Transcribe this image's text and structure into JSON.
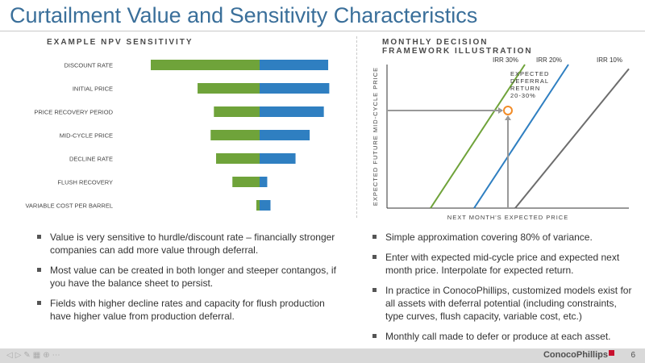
{
  "title": "Curtailment Value and Sensitivity Characteristics",
  "left": {
    "heading": "EXAMPLE NPV SENSITIVITY",
    "bullets": [
      "Value is very sensitive to hurdle/discount rate – financially stronger companies can add more value through deferral.",
      "Most value can be created in both longer and steeper contangos, if you have the balance sheet to persist.",
      "Fields with higher decline rates and capacity for flush production have higher value from production deferral."
    ]
  },
  "right": {
    "heading_line1": "MONTHLY DECISION",
    "heading_line2": "FRAMEWORK ILLUSTRATION",
    "bullets": [
      "Simple approximation covering 80% of variance.",
      "Enter with expected mid-cycle price and expected next month price.  Interpolate for expected return.",
      "In practice in ConocoPhillips, customized models exist for all assets with deferral potential (including constraints, type curves, flush capacity, variable cost, etc.)",
      "Monthly call made to defer or produce at each asset."
    ]
  },
  "footer": {
    "logo": "ConocoPhillips",
    "page": "6"
  },
  "colors": {
    "green": "#6fa33a",
    "blue": "#2f7fc1",
    "gray": "#6d6d6d",
    "orange": "#f28c28",
    "title": "#3a6f9a"
  },
  "chart_data": [
    {
      "type": "bar",
      "subtype": "tornado",
      "categories": [
        "DISCOUNT RATE",
        "INITIAL PRICE",
        "PRICE RECOVERY PERIOD",
        "MID-CYCLE PRICE",
        "DECLINE RATE",
        "FLUSH RECOVERY",
        "VARIABLE COST PER BARREL"
      ],
      "series": [
        {
          "color": "#6fa33a",
          "values": [
            -100,
            -57,
            -42,
            -45,
            -40,
            -25,
            -3
          ]
        },
        {
          "color": "#2f7fc1",
          "values": [
            63,
            64,
            59,
            46,
            33,
            7,
            10
          ]
        }
      ],
      "center_value": 0
    },
    {
      "type": "line",
      "xlabel": "NEXT MONTH'S EXPECTED PRICE",
      "ylabel": "EXPECTED FUTURE MID-CYCLE PRICE",
      "xlim": [
        0,
        100
      ],
      "ylim": [
        0,
        100
      ],
      "series": [
        {
          "name": "IRR 30%",
          "color": "#6fa33a",
          "points": [
            [
              18,
              0
            ],
            [
              57,
              100
            ]
          ]
        },
        {
          "name": "IRR 20%",
          "color": "#2f7fc1",
          "points": [
            [
              36,
              0
            ],
            [
              75,
              100
            ]
          ]
        },
        {
          "name": "IRR 10%",
          "color": "#6d6d6d",
          "points": [
            [
              53,
              0
            ],
            [
              100,
              97
            ]
          ]
        }
      ],
      "highlight": {
        "x": 50,
        "y": 68,
        "color": "#f28c28"
      },
      "annotation": {
        "line1": "EXPECTED",
        "line2": "DEFERRAL",
        "line3": "RETURN",
        "line4": "20-30%"
      }
    }
  ]
}
